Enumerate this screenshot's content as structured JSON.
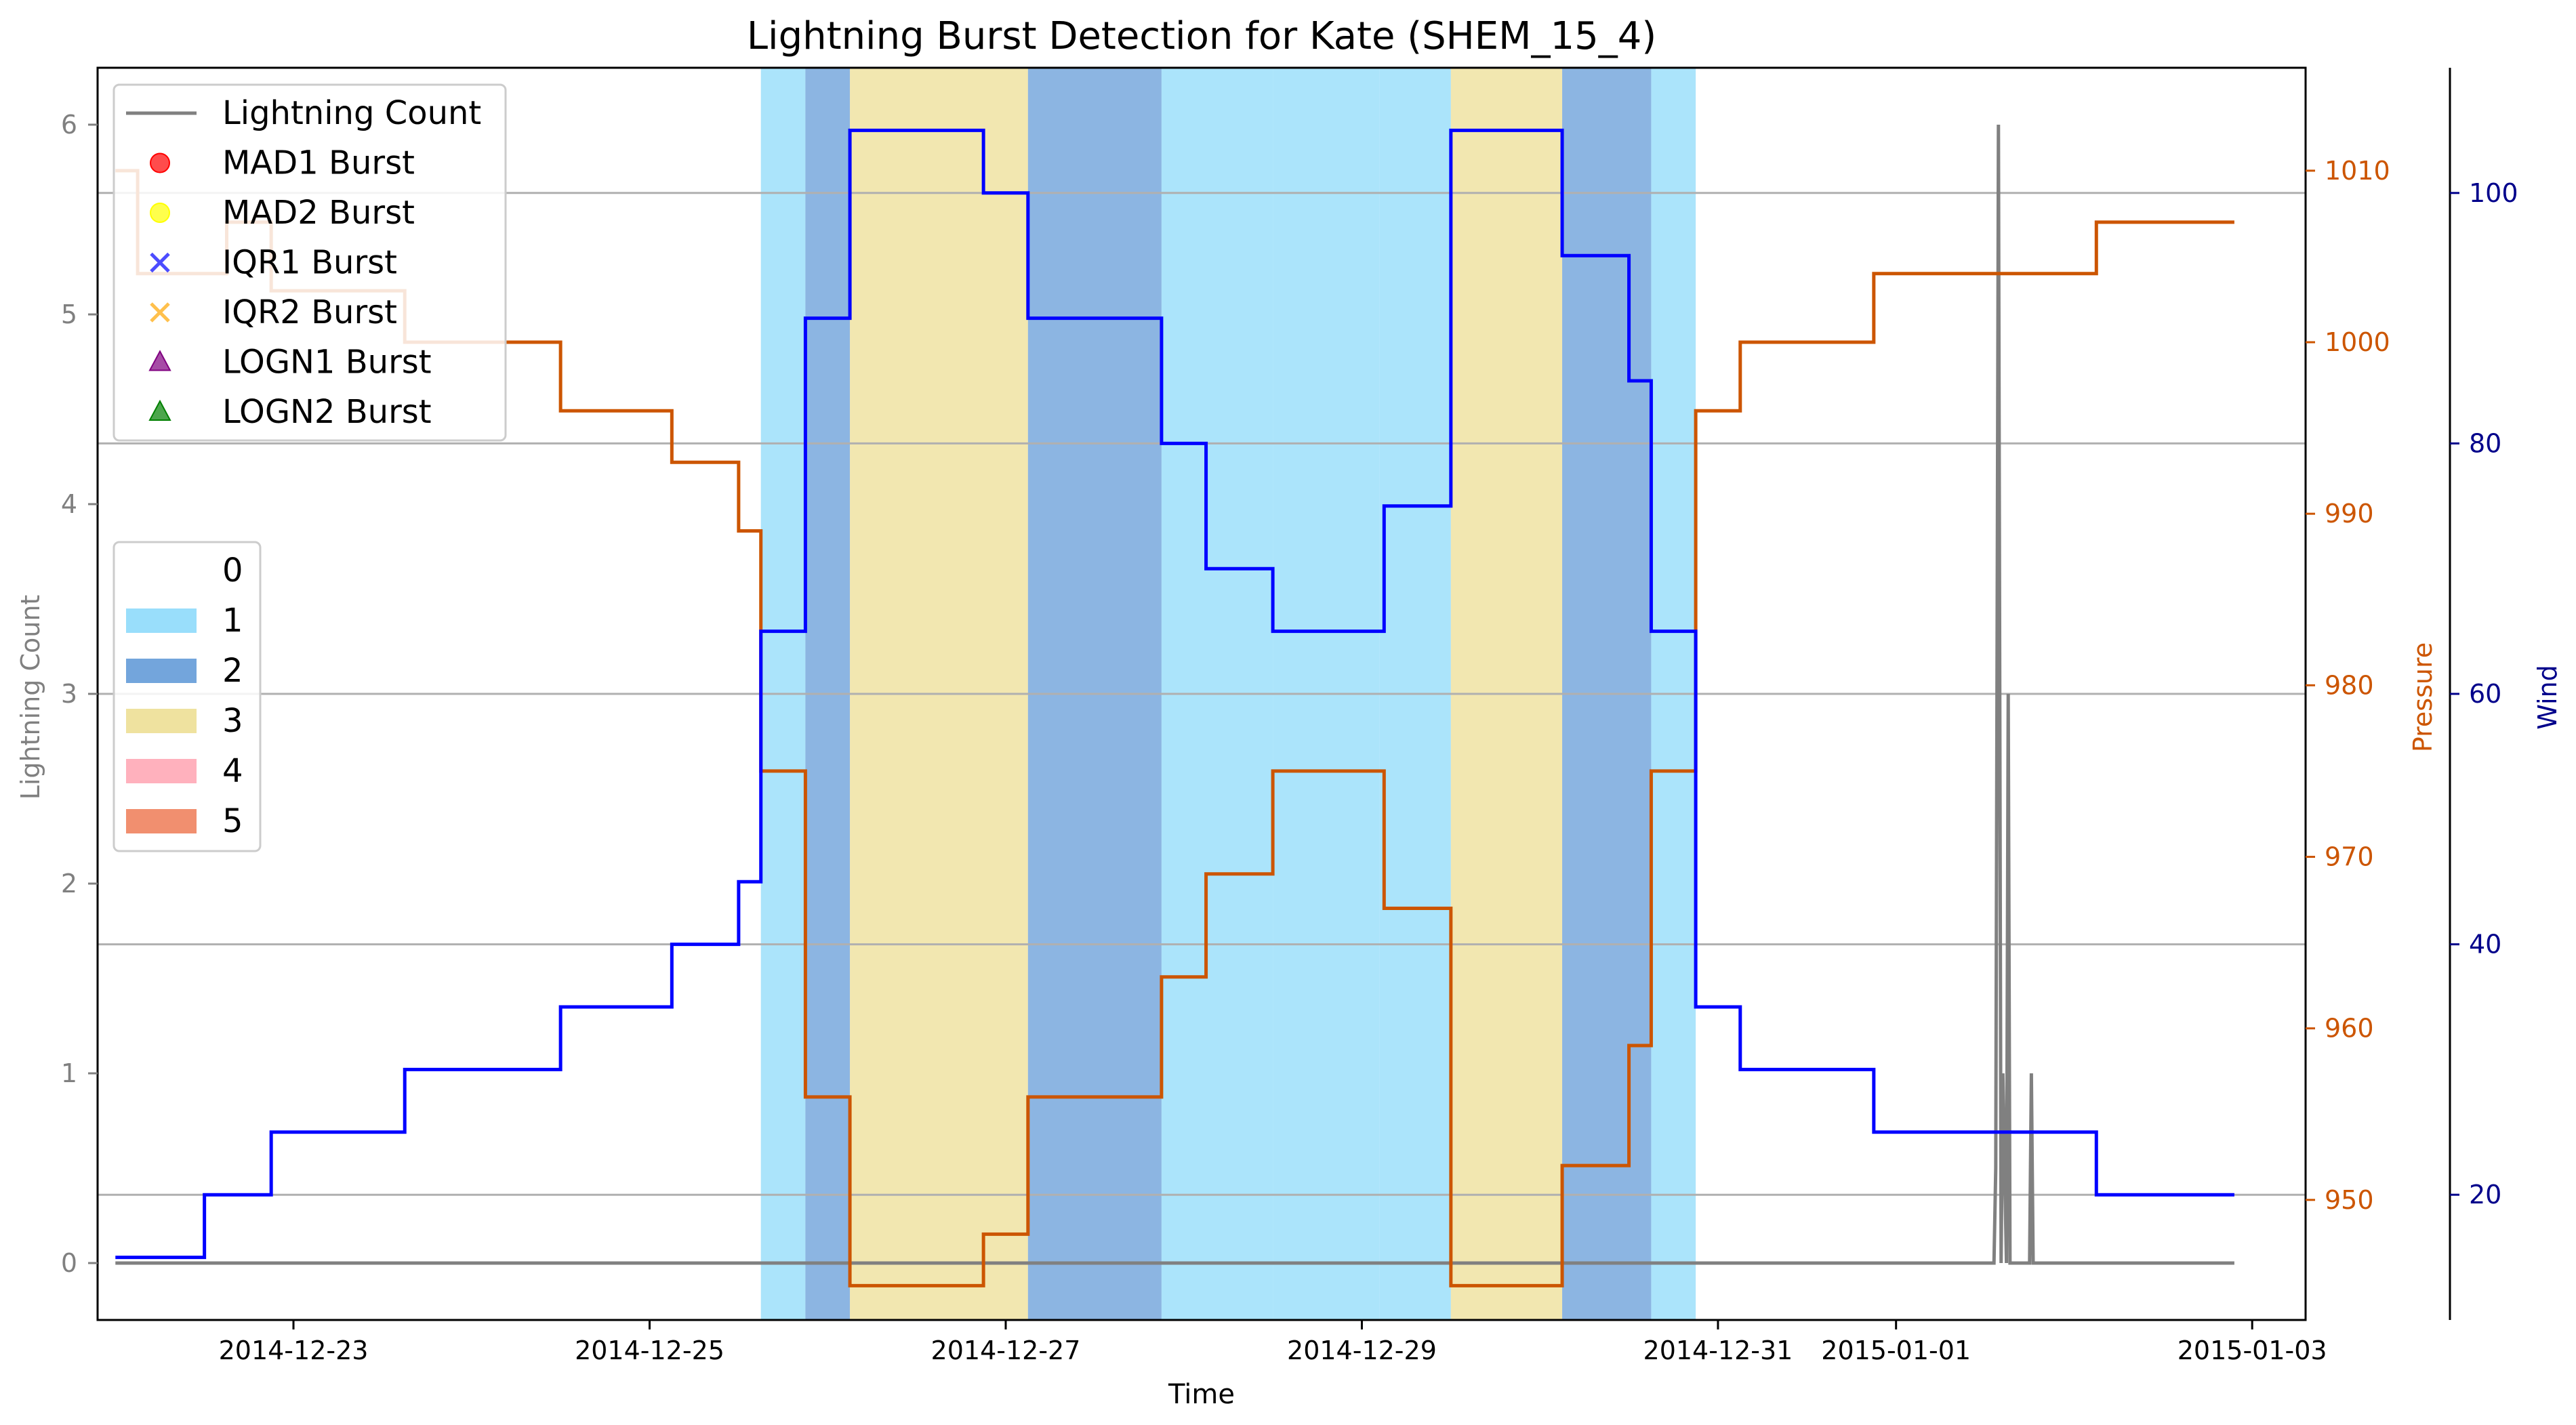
{
  "chart_data": {
    "type": "line",
    "title": "Lightning Burst Detection for Kate (SHEM_15_4)",
    "xlabel": "Time",
    "ylabel_left": "Lightning Count",
    "ylabel_pressure": "Pressure",
    "ylabel_wind": "Wind",
    "x_ticks": [
      "2014-12-23",
      "2014-12-25",
      "2014-12-27",
      "2014-12-29",
      "2014-12-31",
      "2015-01-01",
      "2015-01-03"
    ],
    "x_tick_days": [
      0.5,
      2.5,
      4.5,
      6.5,
      8.5,
      9.5,
      11.5
    ],
    "xlim_days": [
      -0.6,
      11.8
    ],
    "left_axis": {
      "ylim": [
        -0.3,
        6.3
      ],
      "ticks": [
        0,
        1,
        2,
        3,
        4,
        5,
        6
      ]
    },
    "pressure_axis": {
      "ylim": [
        943,
        1016
      ],
      "ticks": [
        950,
        960,
        970,
        980,
        990,
        1000,
        1010
      ]
    },
    "wind_axis": {
      "ylim": [
        10,
        110
      ],
      "ticks": [
        20,
        40,
        60,
        80,
        100
      ]
    },
    "wind_gridlines": [
      20,
      40,
      60,
      80,
      100
    ],
    "category_bands": [
      {
        "start": 3.125,
        "end": 3.375,
        "category": 1
      },
      {
        "start": 3.375,
        "end": 3.625,
        "category": 2
      },
      {
        "start": 3.625,
        "end": 4.625,
        "category": 3
      },
      {
        "start": 4.625,
        "end": 5.375,
        "category": 2
      },
      {
        "start": 5.375,
        "end": 6.0,
        "category": 1
      },
      {
        "start": 6.0,
        "end": 6.6,
        "category": 1
      },
      {
        "start": 6.6,
        "end": 7.0,
        "category": 1
      },
      {
        "start": 7.0,
        "end": 7.625,
        "category": 3
      },
      {
        "start": 7.625,
        "end": 8.125,
        "category": 2
      },
      {
        "start": 8.125,
        "end": 8.375,
        "category": 1
      }
    ],
    "series": [
      {
        "name": "Lightning Count",
        "axis": "left",
        "color": "#808080",
        "points": [
          [
            -0.5,
            0
          ],
          [
            10.05,
            0
          ],
          [
            10.06,
            0.5
          ],
          [
            10.075,
            6
          ],
          [
            10.09,
            0
          ],
          [
            10.1,
            1
          ],
          [
            10.12,
            0
          ],
          [
            10.13,
            3
          ],
          [
            10.14,
            0
          ],
          [
            10.25,
            0
          ],
          [
            10.26,
            1
          ],
          [
            10.27,
            0
          ],
          [
            11.4,
            0
          ]
        ]
      },
      {
        "name": "Pressure",
        "axis": "pressure",
        "color": "#cc5500",
        "steps": [
          [
            -0.5,
            1010
          ],
          [
            -0.375,
            1004
          ],
          [
            0.125,
            1007
          ],
          [
            0.375,
            1003
          ],
          [
            1.125,
            1000
          ],
          [
            2.0,
            996
          ],
          [
            2.625,
            993
          ],
          [
            3.0,
            989
          ],
          [
            3.125,
            975
          ],
          [
            3.375,
            956
          ],
          [
            3.625,
            945
          ],
          [
            4.375,
            948
          ],
          [
            4.625,
            956
          ],
          [
            5.375,
            963
          ],
          [
            5.625,
            969
          ],
          [
            6.0,
            975
          ],
          [
            6.625,
            967
          ],
          [
            7.0,
            945
          ],
          [
            7.625,
            952
          ],
          [
            8.0,
            959
          ],
          [
            8.125,
            975
          ],
          [
            8.375,
            996
          ],
          [
            8.625,
            1000
          ],
          [
            9.375,
            1004
          ],
          [
            10.625,
            1007
          ],
          [
            11.4,
            1007
          ]
        ]
      },
      {
        "name": "Wind",
        "axis": "wind",
        "color": "#0000ff",
        "steps": [
          [
            -0.5,
            15
          ],
          [
            0.0,
            20
          ],
          [
            0.375,
            25
          ],
          [
            1.125,
            30
          ],
          [
            2.0,
            35
          ],
          [
            2.625,
            40
          ],
          [
            3.0,
            45
          ],
          [
            3.125,
            65
          ],
          [
            3.375,
            90
          ],
          [
            3.625,
            105
          ],
          [
            4.375,
            100
          ],
          [
            4.625,
            90
          ],
          [
            5.375,
            80
          ],
          [
            5.625,
            70
          ],
          [
            6.0,
            65
          ],
          [
            6.625,
            75
          ],
          [
            7.0,
            105
          ],
          [
            7.625,
            95
          ],
          [
            8.0,
            85
          ],
          [
            8.125,
            65
          ],
          [
            8.375,
            35
          ],
          [
            8.625,
            30
          ],
          [
            9.375,
            25
          ],
          [
            10.625,
            20
          ],
          [
            11.4,
            20
          ]
        ]
      }
    ],
    "legend_top": {
      "position": "top-left",
      "entries": [
        {
          "label": "Lightning Count",
          "marker": "line",
          "color": "#808080"
        },
        {
          "label": "MAD1 Burst",
          "marker": "circle",
          "color": "#ff0000"
        },
        {
          "label": "MAD2 Burst",
          "marker": "circle",
          "color": "#ffff00"
        },
        {
          "label": "IQR1 Burst",
          "marker": "x",
          "color": "#0000ff"
        },
        {
          "label": "IQR2 Burst",
          "marker": "x",
          "color": "#ffa500"
        },
        {
          "label": "LOGN1 Burst",
          "marker": "triangle",
          "color": "#800080"
        },
        {
          "label": "LOGN2 Burst",
          "marker": "triangle",
          "color": "#008000"
        }
      ]
    },
    "legend_category": {
      "position": "center-left",
      "entries": [
        {
          "label": "0",
          "color": "#ffffff"
        },
        {
          "label": "1",
          "color": "#87d8fa"
        },
        {
          "label": "2",
          "color": "#5b95d6"
        },
        {
          "label": "3",
          "color": "#ecdd8e"
        },
        {
          "label": "4",
          "color": "#ffa3b1"
        },
        {
          "label": "5",
          "color": "#ee7b56"
        }
      ]
    },
    "colors": {
      "left_axis": "#808080",
      "pressure_axis": "#cc5500",
      "wind_axis": "#00008b",
      "band_opacity": 0.7
    }
  }
}
